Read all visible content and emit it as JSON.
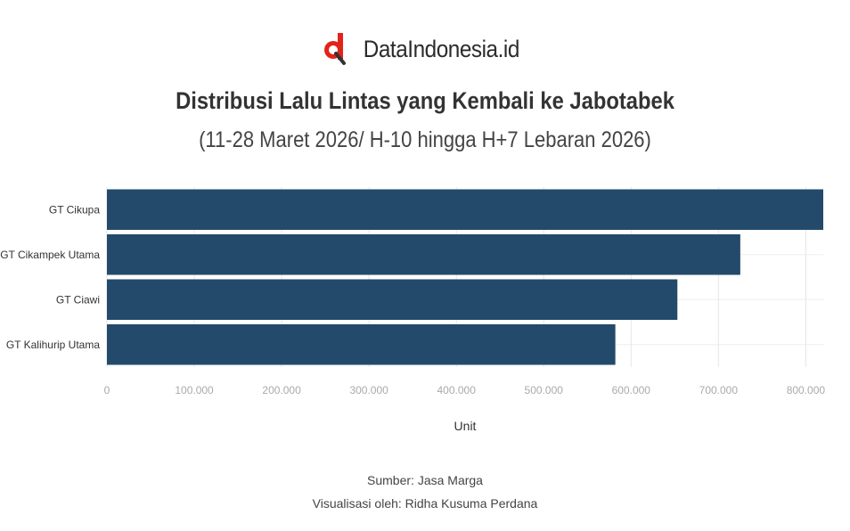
{
  "brand": {
    "name": "DataIndonesia.id",
    "logo_icon": "dataindonesia-logo-icon",
    "logo_color": "#e2231a"
  },
  "chart_data": {
    "type": "bar",
    "orientation": "horizontal",
    "title": "Distribusi Lalu Lintas yang Kembali ke Jabotabek",
    "subtitle": "(11-28 Maret 2026/ H-10 hingga H+7 Lebaran 2026)",
    "categories": [
      "GT Cikupa",
      "GT Cikampek Utama",
      "GT Ciawi",
      "GT Kalihurip Utama"
    ],
    "values": [
      820000,
      725000,
      653000,
      582000
    ],
    "xlabel": "Unit",
    "xlim": [
      0,
      820000
    ],
    "xticks": [
      0,
      100000,
      200000,
      300000,
      400000,
      500000,
      600000,
      700000,
      800000
    ],
    "xtick_labels": [
      "0",
      "100.000",
      "200.000",
      "300.000",
      "400.000",
      "500.000",
      "600.000",
      "700.000",
      "800.000"
    ],
    "bar_color": "#234a6a",
    "grid": "vertical"
  },
  "footer": {
    "source": "Sumber: Jasa Marga",
    "credit": "Visualisasi oleh: Ridha Kusuma Perdana"
  }
}
